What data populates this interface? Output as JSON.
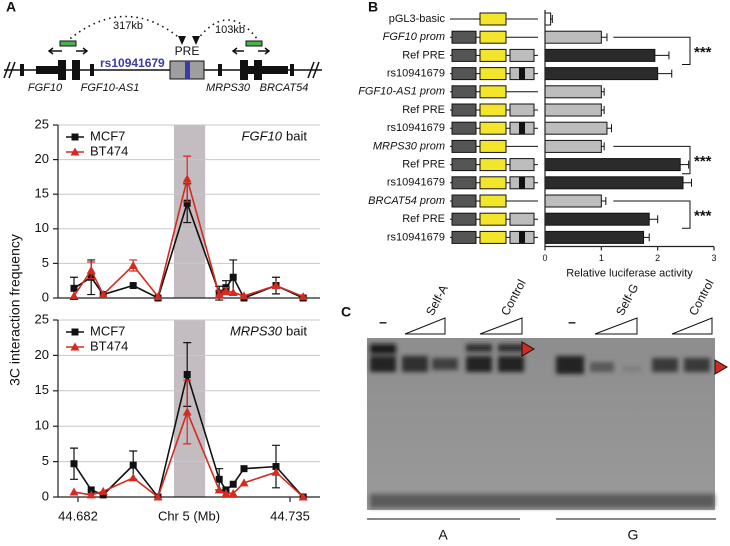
{
  "panel_labels": [
    "A",
    "B",
    "C"
  ],
  "diagram": {
    "distances": [
      "317kb",
      "103kb"
    ],
    "element": "PRE",
    "snp": "rs10941679",
    "genes": [
      "FGF10",
      "FGF10-AS1",
      "MRPS30",
      "BRCAT54"
    ]
  },
  "chart_data": [
    {
      "type": "line",
      "annotation": {
        "gene": "FGF10",
        "text": "bait"
      },
      "ylabel": "3C interaction frequency",
      "x": [
        44.681,
        44.6853,
        44.6883,
        44.6958,
        44.702,
        44.7093,
        44.7173,
        44.719,
        44.7208,
        44.7235,
        44.7315,
        44.7383
      ],
      "xlim": [
        44.677,
        44.7425
      ],
      "shaded_range": [
        44.706,
        44.7138
      ],
      "ylim": [
        0,
        25
      ],
      "yticks": [
        0,
        5,
        10,
        15,
        20,
        25
      ],
      "grid": true,
      "series": [
        {
          "name": "MCF7",
          "color": "#111111",
          "marker": "square",
          "values": [
            1.4,
            3,
            0.5,
            1.8,
            0,
            13.7,
            0.7,
            1.5,
            3,
            0,
            1.8,
            0
          ],
          "errors": [
            1.6,
            2.5,
            null,
            null,
            null,
            2.8,
            1,
            1,
            2.5,
            null,
            1.2,
            null
          ]
        },
        {
          "name": "BT474",
          "color": "#d42a20",
          "marker": "triangle",
          "values": [
            0.3,
            4,
            0.5,
            4.7,
            0.2,
            17.2,
            0.5,
            1,
            0.8,
            0.3,
            1.8,
            0.2
          ],
          "errors": [
            null,
            1.2,
            null,
            0.8,
            null,
            3.3,
            0.5,
            0.5,
            null,
            null,
            null,
            null
          ]
        }
      ]
    },
    {
      "type": "line",
      "annotation": {
        "gene": "MRPS30",
        "text": "bait"
      },
      "xlabel": "Chr 5 (Mb)",
      "x": [
        44.681,
        44.6853,
        44.6883,
        44.6958,
        44.702,
        44.7093,
        44.7173,
        44.719,
        44.7208,
        44.7235,
        44.7315,
        44.7383
      ],
      "xlim": [
        44.677,
        44.7425
      ],
      "xticks": [
        44.682,
        44.735
      ],
      "shaded_range": [
        44.706,
        44.7138
      ],
      "ylim": [
        0,
        25
      ],
      "yticks": [
        0,
        5,
        10,
        15,
        20,
        25
      ],
      "grid": true,
      "series": [
        {
          "name": "MCF7",
          "color": "#111111",
          "marker": "square",
          "values": [
            4.7,
            1,
            0.3,
            4.5,
            0,
            17.3,
            2.5,
            1,
            1.8,
            4,
            4.3,
            0
          ],
          "errors": [
            2.2,
            null,
            null,
            2,
            null,
            4.5,
            1.5,
            null,
            null,
            null,
            3,
            null
          ]
        },
        {
          "name": "BT474",
          "color": "#d42a20",
          "marker": "triangle",
          "values": [
            0.7,
            0.3,
            0.8,
            2.7,
            0,
            12,
            1,
            0.5,
            0.5,
            2,
            3.5,
            0
          ],
          "errors": [
            null,
            null,
            null,
            null,
            null,
            4.5,
            null,
            null,
            null,
            null,
            null,
            null
          ]
        }
      ]
    },
    {
      "type": "bar",
      "orientation": "horizontal",
      "xlabel": "Relative luciferase activity",
      "categories": [
        "pGL3-basic",
        "FGF10 prom",
        "Ref PRE",
        "rs10941679",
        "FGF10-AS1 prom",
        "Ref PRE",
        "rs10941679",
        "MRPS30 prom",
        "Ref PRE",
        "rs10941679",
        "BRCAT54 prom",
        "Ref PRE",
        "rs10941679"
      ],
      "values": [
        0.1,
        1.0,
        1.95,
        2.0,
        1.0,
        1.0,
        1.1,
        1.0,
        2.4,
        2.45,
        1.0,
        1.85,
        1.75
      ],
      "errors": [
        0.03,
        0.1,
        0.25,
        0.25,
        0.05,
        0.05,
        0.08,
        0.05,
        0.15,
        0.15,
        0.08,
        0.15,
        0.1
      ],
      "colors": [
        "#ffffff",
        "#bdbdbd",
        "#2b2b2b",
        "#2b2b2b",
        "#bdbdbd",
        "#bdbdbd",
        "#bdbdbd",
        "#bdbdbd",
        "#2b2b2b",
        "#2b2b2b",
        "#bdbdbd",
        "#2b2b2b",
        "#2b2b2b"
      ],
      "xlim": [
        0,
        3
      ],
      "xticks": [
        0,
        1,
        2,
        3
      ],
      "significance": [
        "***",
        "***",
        "***"
      ]
    }
  ],
  "gel": {
    "lane_labels": [
      "–",
      "Self-A",
      "Control",
      "–",
      "Self-G",
      "Control"
    ],
    "groups": [
      "A",
      "G"
    ]
  }
}
